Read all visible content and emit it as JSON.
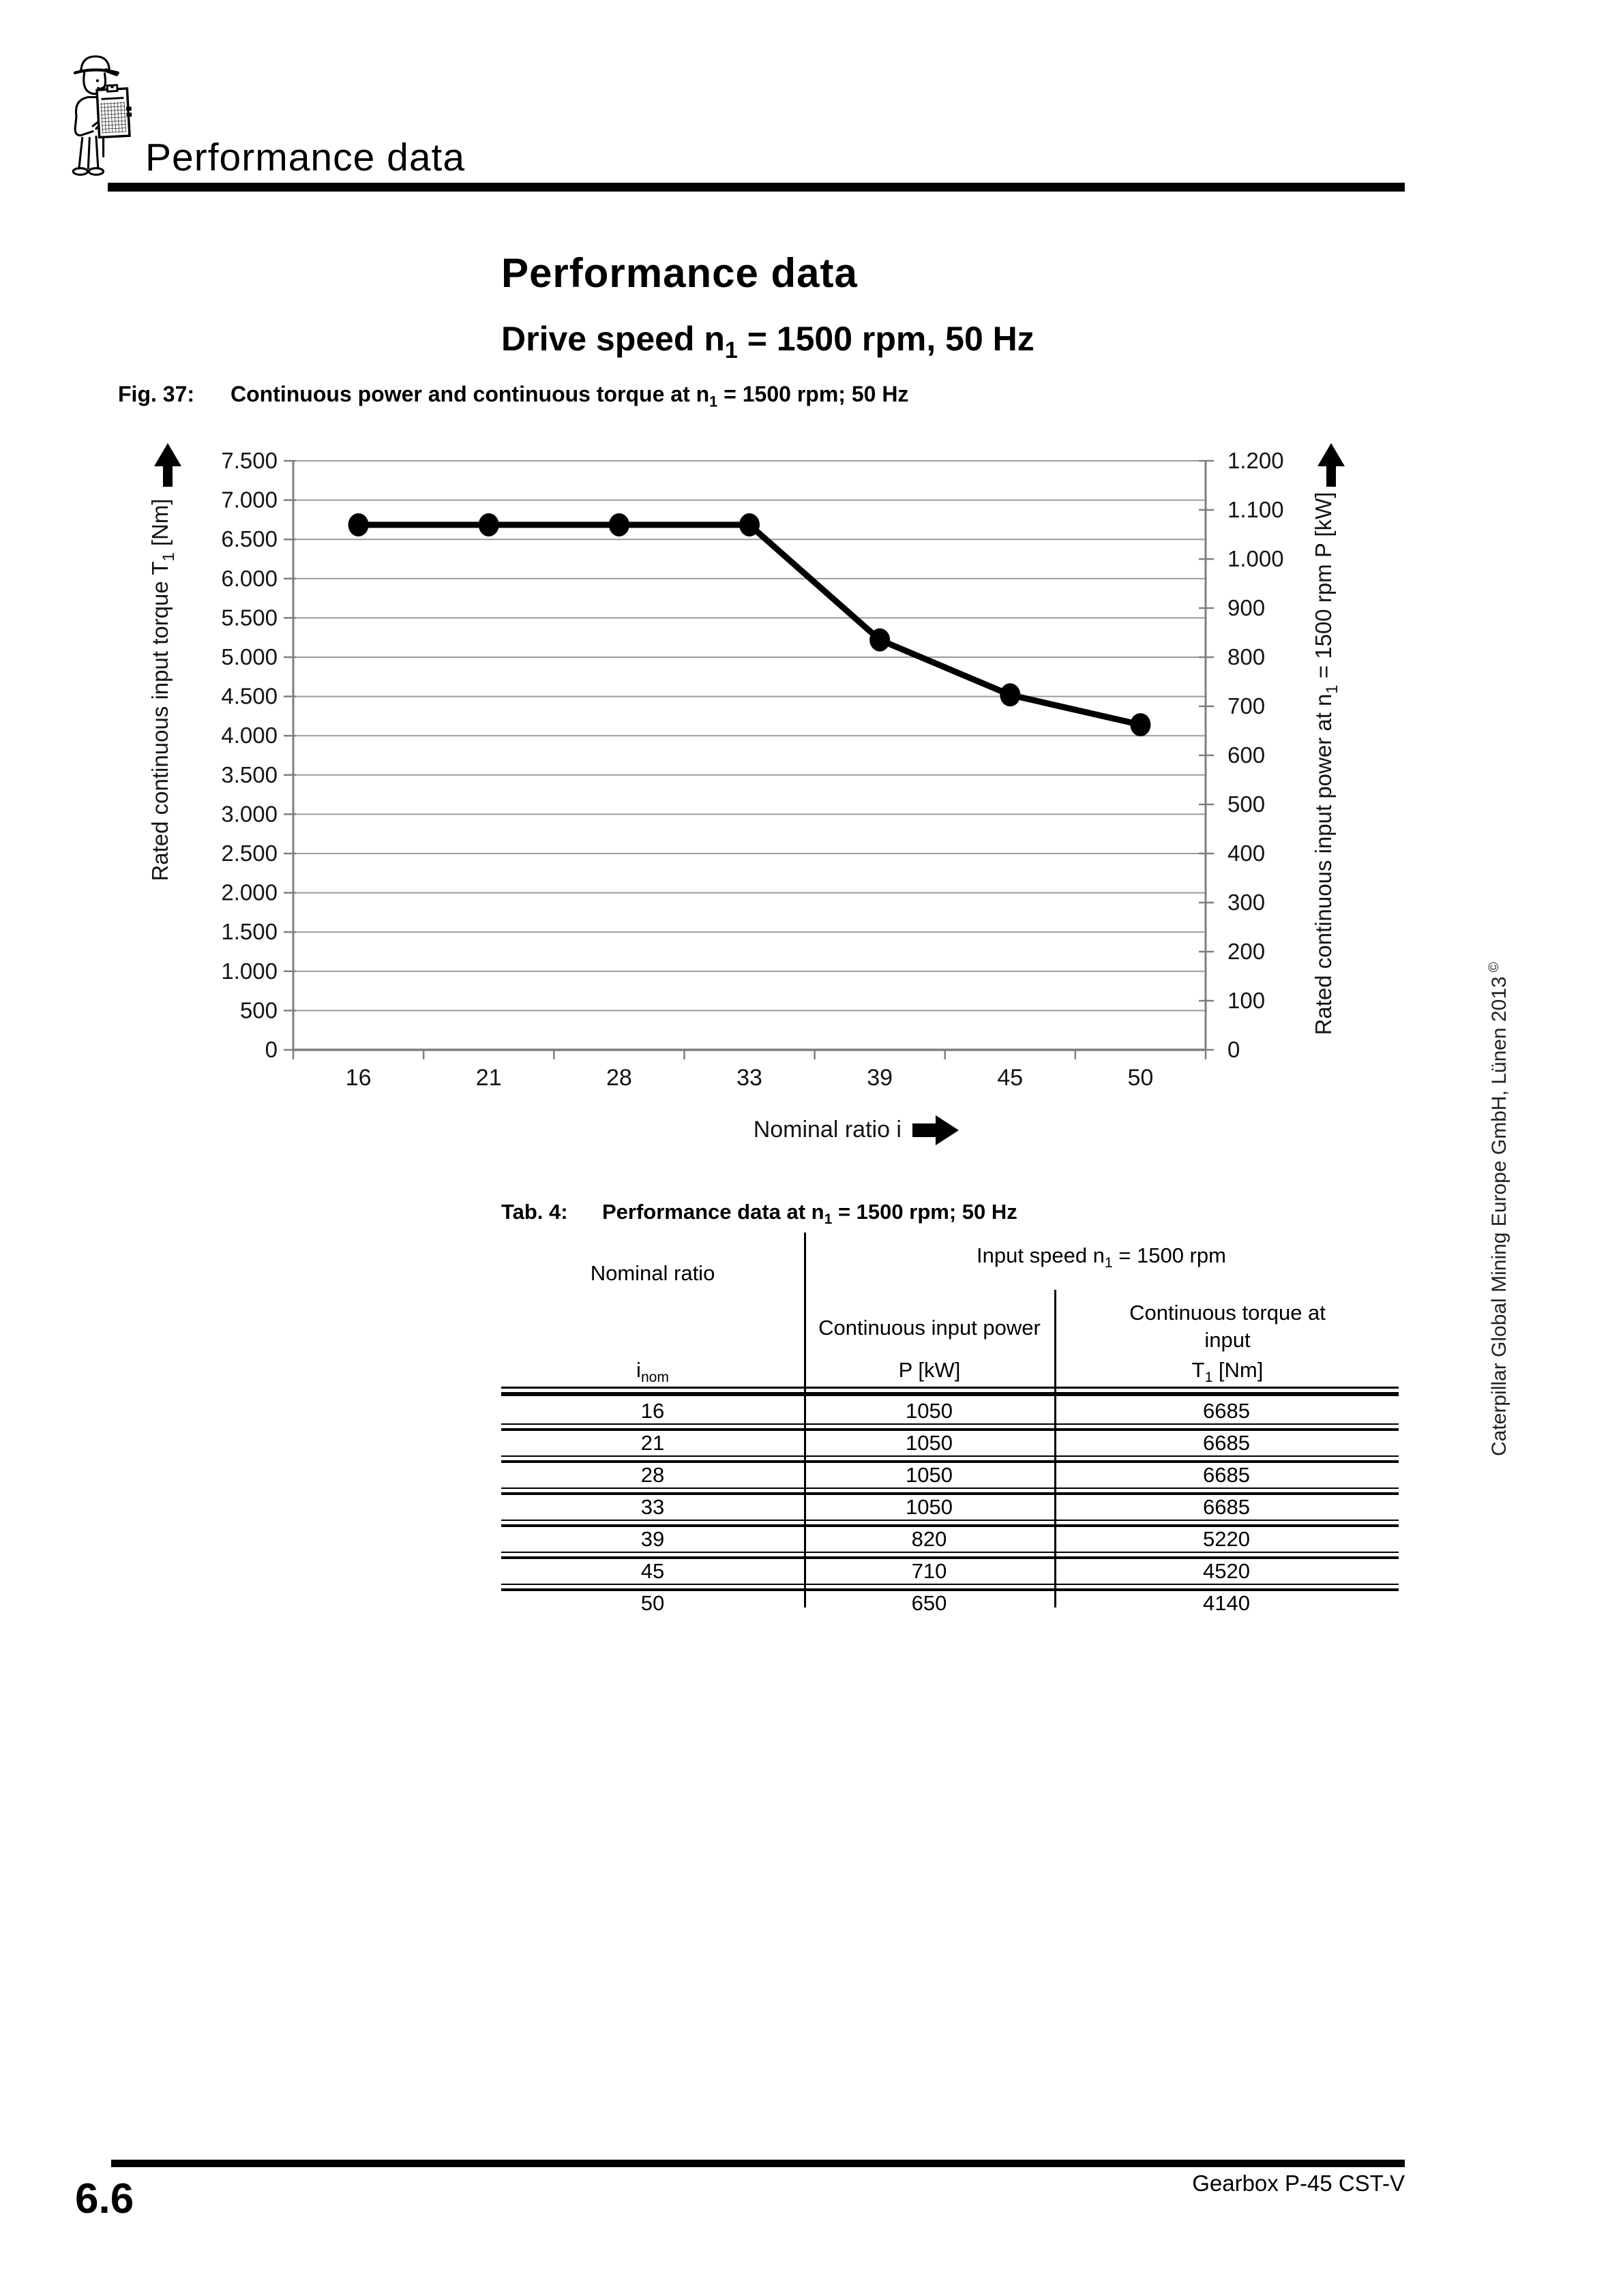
{
  "page": {
    "header": {
      "title": "Performance data"
    },
    "footer": {
      "product": "Gearbox P-45 CST-V",
      "page_number": "6.6"
    },
    "sidebar_copyright": {
      "text": "Caterpillar Global Mining Europe GmbH, Lünen 2013",
      "symbol": "©"
    }
  },
  "content": {
    "title": "Performance data",
    "subtitle": {
      "pre": "Drive speed n",
      "sub": "1",
      "post": " = 1500 rpm, 50 Hz"
    },
    "figure": {
      "label": "Fig. 37:",
      "caption_pre": "Continuous power and continuous torque at n",
      "caption_sub": "1",
      "caption_post": " = 1500 rpm; 50 Hz"
    }
  },
  "chart_data": {
    "type": "line",
    "categories": [
      "16",
      "21",
      "28",
      "33",
      "39",
      "45",
      "50"
    ],
    "series": [
      {
        "name": "Continuous torque at input T1 [Nm]",
        "axis": "left",
        "values": [
          6685,
          6685,
          6685,
          6685,
          5220,
          4520,
          4140
        ]
      },
      {
        "name": "Continuous input power P [kW]",
        "axis": "right",
        "values": [
          1050,
          1050,
          1050,
          1050,
          820,
          710,
          650
        ]
      }
    ],
    "plotted_series": "single black curve with round markers (torque scale)",
    "left_axis": {
      "title_pre": "Rated continuous input torque T",
      "title_sub": "1",
      "title_post": " [Nm]",
      "min": 0,
      "max": 7500,
      "tick_step": 500,
      "tick_labels": [
        "7.500",
        "7.000",
        "6.500",
        "6.000",
        "5.500",
        "5.000",
        "4.500",
        "4.000",
        "3.500",
        "3.000",
        "2.500",
        "2.000",
        "1.500",
        "1.000",
        "500",
        "0"
      ]
    },
    "right_axis": {
      "title_pre": "Rated continuous input power at n",
      "title_sub": "1",
      "title_post": " = 1500 rpm P [kW]",
      "min": 0,
      "max": 1200,
      "tick_step": 100,
      "tick_labels": [
        "1.200",
        "1.100",
        "1.000",
        "900",
        "800",
        "700",
        "600",
        "500",
        "400",
        "300",
        "200",
        "100",
        "0"
      ]
    },
    "x_axis": {
      "title": "Nominal ratio i"
    },
    "grid": "horizontal gridlines every 500 Nm",
    "legend": "none"
  },
  "table": {
    "caption_label": "Tab. 4:",
    "caption_pre": "Performance data at n",
    "caption_sub": "1",
    "caption_post": " = 1500 rpm; 50 Hz",
    "col_group_header": {
      "pre": "Input speed n",
      "sub": "1",
      "post": " = 1500 rpm"
    },
    "columns": [
      {
        "header": "Nominal ratio",
        "unit_pre": "i",
        "unit_sub": "nom",
        "unit_post": ""
      },
      {
        "header": "Continuous input power",
        "unit_pre": "P [kW]",
        "unit_sub": "",
        "unit_post": ""
      },
      {
        "header": "Continuous torque at input",
        "unit_pre": "T",
        "unit_sub": "1",
        "unit_post": " [Nm]"
      }
    ],
    "rows": [
      [
        "16",
        "1050",
        "6685"
      ],
      [
        "21",
        "1050",
        "6685"
      ],
      [
        "28",
        "1050",
        "6685"
      ],
      [
        "33",
        "1050",
        "6685"
      ],
      [
        "39",
        "820",
        "5220"
      ],
      [
        "45",
        "710",
        "4520"
      ],
      [
        "50",
        "650",
        "4140"
      ]
    ]
  }
}
